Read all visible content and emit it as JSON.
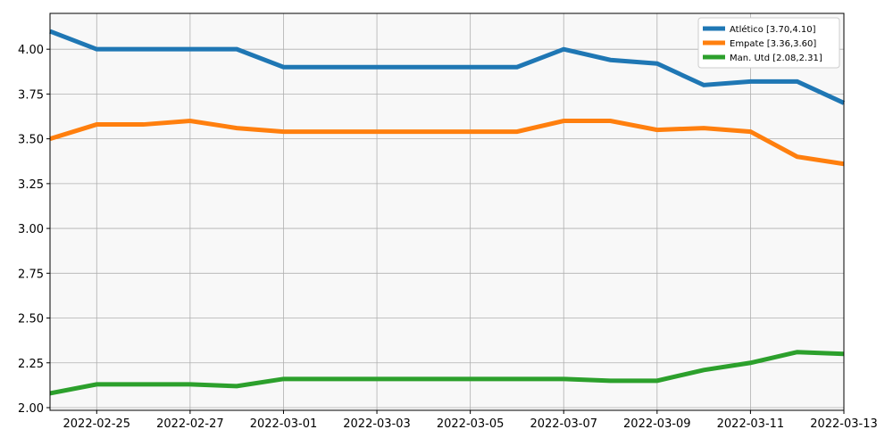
{
  "chart_data": {
    "type": "line",
    "x": [
      "2022-02-24",
      "2022-02-25",
      "2022-02-26",
      "2022-02-27",
      "2022-02-28",
      "2022-03-01",
      "2022-03-02",
      "2022-03-03",
      "2022-03-04",
      "2022-03-05",
      "2022-03-06",
      "2022-03-07",
      "2022-03-08",
      "2022-03-09",
      "2022-03-10",
      "2022-03-11",
      "2022-03-12",
      "2022-03-13"
    ],
    "series": [
      {
        "name": "Atlético [3.70,4.10]",
        "color": "#1f77b4",
        "values": [
          4.1,
          4.0,
          4.0,
          4.0,
          4.0,
          3.9,
          3.9,
          3.9,
          3.9,
          3.9,
          3.9,
          4.0,
          3.94,
          3.92,
          3.8,
          3.82,
          3.82,
          3.7
        ]
      },
      {
        "name": "Empate [3.36,3.60]",
        "color": "#ff7f0e",
        "values": [
          3.5,
          3.58,
          3.58,
          3.6,
          3.56,
          3.54,
          3.54,
          3.54,
          3.54,
          3.54,
          3.54,
          3.6,
          3.6,
          3.55,
          3.56,
          3.54,
          3.4,
          3.36
        ]
      },
      {
        "name": "Man. Utd [2.08,2.31]",
        "color": "#2ca02c",
        "values": [
          2.08,
          2.13,
          2.13,
          2.13,
          2.12,
          2.16,
          2.16,
          2.16,
          2.16,
          2.16,
          2.16,
          2.16,
          2.15,
          2.15,
          2.21,
          2.25,
          2.31,
          2.3
        ]
      }
    ],
    "xlim": [
      "2022-02-24",
      "2022-03-13"
    ],
    "xticks": [
      "2022-02-25",
      "2022-02-27",
      "2022-03-01",
      "2022-03-03",
      "2022-03-05",
      "2022-03-07",
      "2022-03-09",
      "2022-03-11",
      "2022-03-13"
    ],
    "ylim": [
      1.985,
      4.2
    ],
    "yticks": [
      {
        "value": 2.0,
        "label": "2.00"
      },
      {
        "value": 2.25,
        "label": "2.25"
      },
      {
        "value": 2.5,
        "label": "2.50"
      },
      {
        "value": 2.75,
        "label": "2.75"
      },
      {
        "value": 3.0,
        "label": "3.00"
      },
      {
        "value": 3.25,
        "label": "3.25"
      },
      {
        "value": 3.5,
        "label": "3.50"
      },
      {
        "value": 3.75,
        "label": "3.75"
      },
      {
        "value": 4.0,
        "label": "4.00"
      }
    ],
    "grid": true,
    "legend": "upper right"
  }
}
